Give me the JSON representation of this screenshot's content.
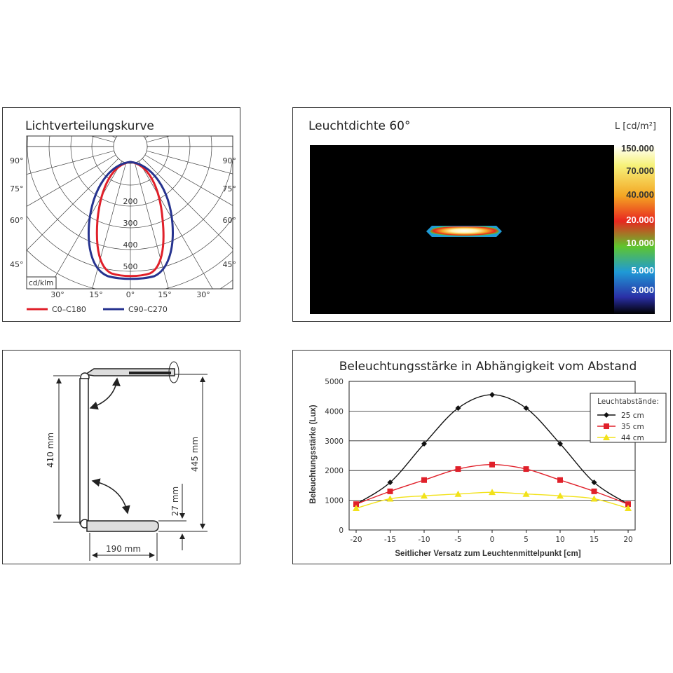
{
  "polar": {
    "title": "Lichtverteilungskurve",
    "unit_label": "cd/klm",
    "angle_labels_left": [
      "90°",
      "75°",
      "60°",
      "45°"
    ],
    "angle_labels_right": [
      "90°",
      "75°",
      "60°",
      "45°"
    ],
    "bottom_labels": [
      "30°",
      "15°",
      "0°",
      "15°",
      "30°"
    ],
    "radial_labels": [
      "200",
      "300",
      "400",
      "500"
    ],
    "legend": [
      {
        "name": "C0–C180",
        "color": "#e0202a"
      },
      {
        "name": "C90–C270",
        "color": "#26338f"
      }
    ]
  },
  "luminance": {
    "title": "Leuchtdichte 60°",
    "unit_label": "L [cd/m²]",
    "scale": [
      "150.000",
      "70.000",
      "40.000",
      "20.000",
      "10.000",
      "5.000",
      "3.000"
    ],
    "scale_colors": [
      "#ffffff",
      "#f6f27a",
      "#f4a623",
      "#e8261f",
      "#5fc52d",
      "#1f9ad6",
      "#2a2fa6",
      "#000000"
    ]
  },
  "dimensions": {
    "height_arm": "410 mm",
    "height_total": "445 mm",
    "base_height": "27 mm",
    "base_width": "190 mm"
  },
  "chart_data": {
    "type": "line",
    "title": "Beleuchtungsstärke in Abhängigkeit vom Abstand",
    "xlabel": "Seitlicher Versatz zum Leuchtenmittelpunkt [cm]",
    "ylabel": "Beleuchtungsstärke (Lux)",
    "x": [
      -20,
      -15,
      -10,
      -5,
      0,
      5,
      10,
      15,
      20
    ],
    "xlim": [
      -20,
      20
    ],
    "ylim": [
      0,
      5000
    ],
    "yticks": [
      0,
      1000,
      2000,
      3000,
      4000,
      5000
    ],
    "grid": true,
    "legend_title": "Leuchtabstände:",
    "legend_position": "top-right",
    "series": [
      {
        "name": "25 cm",
        "color": "#111111",
        "marker": "diamond",
        "values": [
          870,
          1600,
          2900,
          4100,
          4550,
          4100,
          2900,
          1600,
          870
        ]
      },
      {
        "name": "35 cm",
        "color": "#e0202a",
        "marker": "square",
        "values": [
          870,
          1300,
          1680,
          2050,
          2200,
          2050,
          1680,
          1300,
          870
        ]
      },
      {
        "name": "44 cm",
        "color": "#f2e21a",
        "marker": "triangle",
        "values": [
          730,
          1050,
          1150,
          1210,
          1270,
          1210,
          1150,
          1050,
          730
        ]
      }
    ]
  }
}
